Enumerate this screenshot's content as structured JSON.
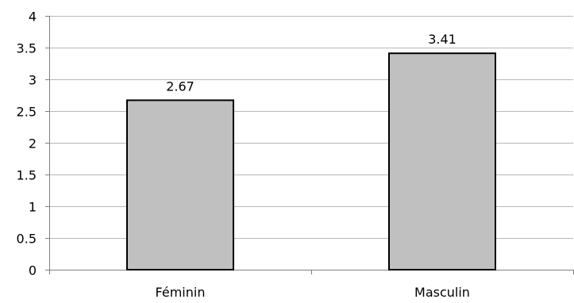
{
  "chart_data": {
    "type": "bar",
    "title": "",
    "xlabel": "",
    "ylabel": "",
    "categories": [
      "Féminin",
      "Masculin"
    ],
    "values": [
      2.67,
      3.41
    ],
    "value_labels": [
      "2.67",
      "3.41"
    ],
    "ylim": [
      0,
      4
    ],
    "yticks": [
      0,
      0.5,
      1,
      1.5,
      2,
      2.5,
      3,
      3.5,
      4
    ],
    "ytick_labels": [
      "0",
      "0.5",
      "1",
      "1.5",
      "2",
      "2.5",
      "3",
      "3.5",
      "4"
    ],
    "grid": true,
    "legend": "none",
    "colors": {
      "bar_fill": "#c0c0c0",
      "bar_stroke": "#000000",
      "grid": "#b8b8b8",
      "axis": "#808080"
    }
  }
}
